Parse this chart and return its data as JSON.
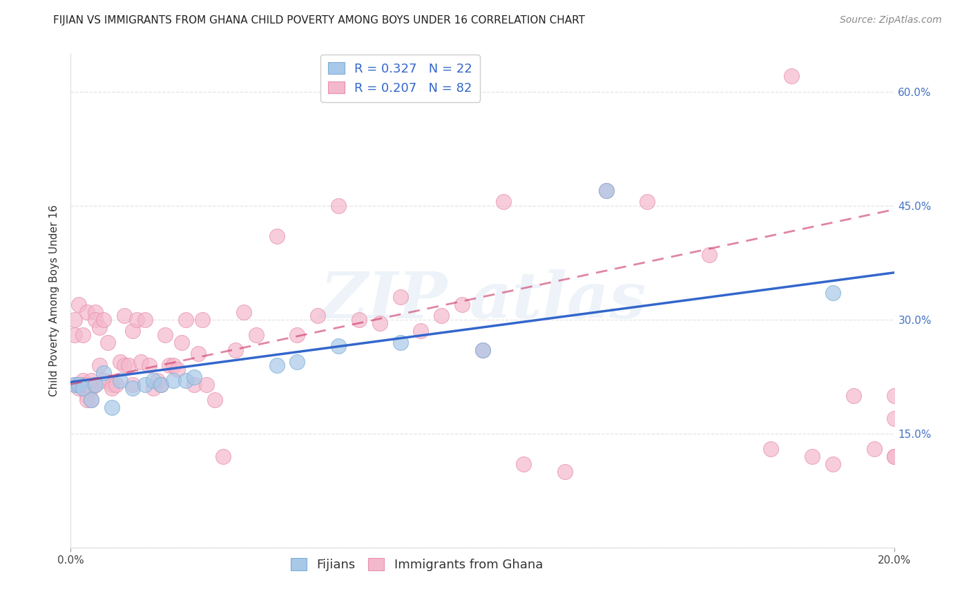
{
  "title": "FIJIAN VS IMMIGRANTS FROM GHANA CHILD POVERTY AMONG BOYS UNDER 16 CORRELATION CHART",
  "source": "Source: ZipAtlas.com",
  "ylabel": "Child Poverty Among Boys Under 16",
  "xlim": [
    0.0,
    0.2
  ],
  "ylim": [
    0.0,
    0.65
  ],
  "xticks": [
    0.0,
    0.2
  ],
  "xtick_labels": [
    "0.0%",
    "20.0%"
  ],
  "yticks": [
    0.0,
    0.15,
    0.3,
    0.45,
    0.6
  ],
  "ytick_labels_right": [
    "",
    "15.0%",
    "30.0%",
    "45.0%",
    "60.0%"
  ],
  "fijian_color": "#a8c8e8",
  "fijian_edge_color": "#7aaed6",
  "ghana_color": "#f4b8cc",
  "ghana_edge_color": "#e890aa",
  "fijian_R": 0.327,
  "fijian_N": 22,
  "ghana_R": 0.207,
  "ghana_N": 82,
  "legend_label_fijian": "Fijians",
  "legend_label_ghana": "Immigrants from Ghana",
  "watermark_text": "ZIP atlas",
  "fijian_x": [
    0.001,
    0.002,
    0.003,
    0.005,
    0.006,
    0.008,
    0.01,
    0.012,
    0.015,
    0.018,
    0.02,
    0.022,
    0.025,
    0.028,
    0.03,
    0.05,
    0.055,
    0.065,
    0.08,
    0.1,
    0.13,
    0.185
  ],
  "fijian_y": [
    0.215,
    0.215,
    0.21,
    0.195,
    0.215,
    0.23,
    0.185,
    0.22,
    0.21,
    0.215,
    0.22,
    0.215,
    0.22,
    0.22,
    0.225,
    0.24,
    0.245,
    0.265,
    0.27,
    0.26,
    0.47,
    0.335
  ],
  "ghana_x": [
    0.001,
    0.001,
    0.001,
    0.002,
    0.002,
    0.002,
    0.003,
    0.003,
    0.003,
    0.004,
    0.004,
    0.004,
    0.004,
    0.005,
    0.005,
    0.005,
    0.006,
    0.006,
    0.006,
    0.007,
    0.007,
    0.008,
    0.008,
    0.009,
    0.01,
    0.01,
    0.011,
    0.012,
    0.013,
    0.013,
    0.014,
    0.015,
    0.015,
    0.016,
    0.017,
    0.018,
    0.019,
    0.02,
    0.021,
    0.022,
    0.023,
    0.024,
    0.025,
    0.026,
    0.027,
    0.028,
    0.03,
    0.031,
    0.032,
    0.033,
    0.035,
    0.037,
    0.04,
    0.042,
    0.045,
    0.05,
    0.055,
    0.06,
    0.065,
    0.07,
    0.075,
    0.08,
    0.085,
    0.09,
    0.095,
    0.1,
    0.105,
    0.11,
    0.12,
    0.13,
    0.14,
    0.155,
    0.17,
    0.175,
    0.18,
    0.185,
    0.19,
    0.195,
    0.2,
    0.2,
    0.2,
    0.2
  ],
  "ghana_y": [
    0.215,
    0.28,
    0.3,
    0.21,
    0.215,
    0.32,
    0.22,
    0.215,
    0.28,
    0.2,
    0.195,
    0.215,
    0.31,
    0.21,
    0.195,
    0.22,
    0.31,
    0.215,
    0.3,
    0.24,
    0.29,
    0.22,
    0.3,
    0.27,
    0.215,
    0.21,
    0.215,
    0.245,
    0.24,
    0.305,
    0.24,
    0.215,
    0.285,
    0.3,
    0.245,
    0.3,
    0.24,
    0.21,
    0.22,
    0.215,
    0.28,
    0.24,
    0.24,
    0.235,
    0.27,
    0.3,
    0.215,
    0.255,
    0.3,
    0.215,
    0.195,
    0.12,
    0.26,
    0.31,
    0.28,
    0.41,
    0.28,
    0.305,
    0.45,
    0.3,
    0.295,
    0.33,
    0.285,
    0.305,
    0.32,
    0.26,
    0.455,
    0.11,
    0.1,
    0.47,
    0.455,
    0.385,
    0.13,
    0.62,
    0.12,
    0.11,
    0.2,
    0.13,
    0.12,
    0.12,
    0.17,
    0.2
  ],
  "title_fontsize": 11,
  "axis_label_fontsize": 11,
  "tick_fontsize": 11,
  "legend_fontsize": 13,
  "source_fontsize": 10,
  "background_color": "#ffffff",
  "grid_color": "#e0e0e0",
  "fijian_line_color": "#3366cc",
  "ghana_line_color": "#cc3366",
  "fijian_line_intercept": 0.218,
  "fijian_line_slope": 0.72,
  "ghana_line_intercept": 0.215,
  "ghana_line_slope": 1.15
}
